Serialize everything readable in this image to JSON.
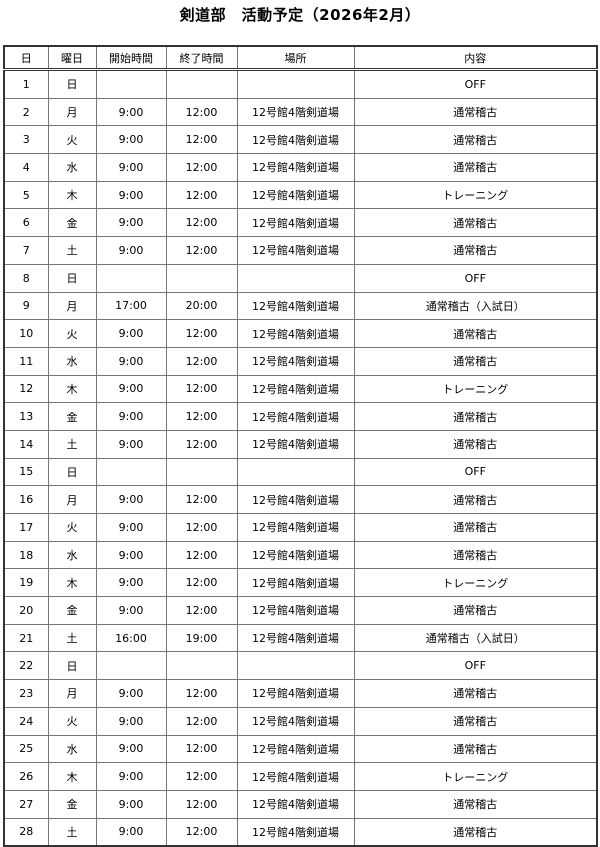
{
  "title": "剣道部　活動予定（2026年2月）",
  "headers": [
    "日",
    "曜日",
    "開始時間",
    "終了時間",
    "場所",
    "内容"
  ],
  "rows": [
    [
      "1",
      "日",
      "",
      "",
      "",
      "OFF"
    ],
    [
      "2",
      "月",
      "9:00",
      "12:00",
      "12号館4階剣道場",
      "通常稽古"
    ],
    [
      "3",
      "火",
      "9:00",
      "12:00",
      "12号館4階剣道場",
      "通常稽古"
    ],
    [
      "4",
      "水",
      "9:00",
      "12:00",
      "12号館4階剣道場",
      "通常稽古"
    ],
    [
      "5",
      "木",
      "9:00",
      "12:00",
      "12号館4階剣道場",
      "トレーニング"
    ],
    [
      "6",
      "金",
      "9:00",
      "12:00",
      "12号館4階剣道場",
      "通常稽古"
    ],
    [
      "7",
      "土",
      "9:00",
      "12:00",
      "12号館4階剣道場",
      "通常稽古"
    ],
    [
      "8",
      "日",
      "",
      "",
      "",
      "OFF"
    ],
    [
      "9",
      "月",
      "17:00",
      "20:00",
      "12号館4階剣道場",
      "通常稽古（入試日）"
    ],
    [
      "10",
      "火",
      "9:00",
      "12:00",
      "12号館4階剣道場",
      "通常稽古"
    ],
    [
      "11",
      "水",
      "9:00",
      "12:00",
      "12号館4階剣道場",
      "通常稽古"
    ],
    [
      "12",
      "木",
      "9:00",
      "12:00",
      "12号館4階剣道場",
      "トレーニング"
    ],
    [
      "13",
      "金",
      "9:00",
      "12:00",
      "12号館4階剣道場",
      "通常稽古"
    ],
    [
      "14",
      "土",
      "9:00",
      "12:00",
      "12号館4階剣道場",
      "通常稽古"
    ],
    [
      "15",
      "日",
      "",
      "",
      "",
      "OFF"
    ],
    [
      "16",
      "月",
      "9:00",
      "12:00",
      "12号館4階剣道場",
      "通常稽古"
    ],
    [
      "17",
      "火",
      "9:00",
      "12:00",
      "12号館4階剣道場",
      "通常稽古"
    ],
    [
      "18",
      "水",
      "9:00",
      "12:00",
      "12号館4階剣道場",
      "通常稽古"
    ],
    [
      "19",
      "木",
      "9:00",
      "12:00",
      "12号館4階剣道場",
      "トレーニング"
    ],
    [
      "20",
      "金",
      "9:00",
      "12:00",
      "12号館4階剣道場",
      "通常稽古"
    ],
    [
      "21",
      "土",
      "16:00",
      "19:00",
      "12号館4階剣道場",
      "通常稽古（入試日）"
    ],
    [
      "22",
      "日",
      "",
      "",
      "",
      "OFF"
    ],
    [
      "23",
      "月",
      "9:00",
      "12:00",
      "12号館4階剣道場",
      "通常稽古"
    ],
    [
      "24",
      "火",
      "9:00",
      "12:00",
      "12号館4階剣道場",
      "通常稽古"
    ],
    [
      "25",
      "水",
      "9:00",
      "12:00",
      "12号館4階剣道場",
      "通常稽古"
    ],
    [
      "26",
      "木",
      "9:00",
      "12:00",
      "12号館4階剣道場",
      "トレーニング"
    ],
    [
      "27",
      "金",
      "9:00",
      "12:00",
      "12号館4階剣道場",
      "通常稽古"
    ],
    [
      "28",
      "土",
      "9:00",
      "12:00",
      "12号館4階剣道場",
      "通常稽古"
    ]
  ]
}
